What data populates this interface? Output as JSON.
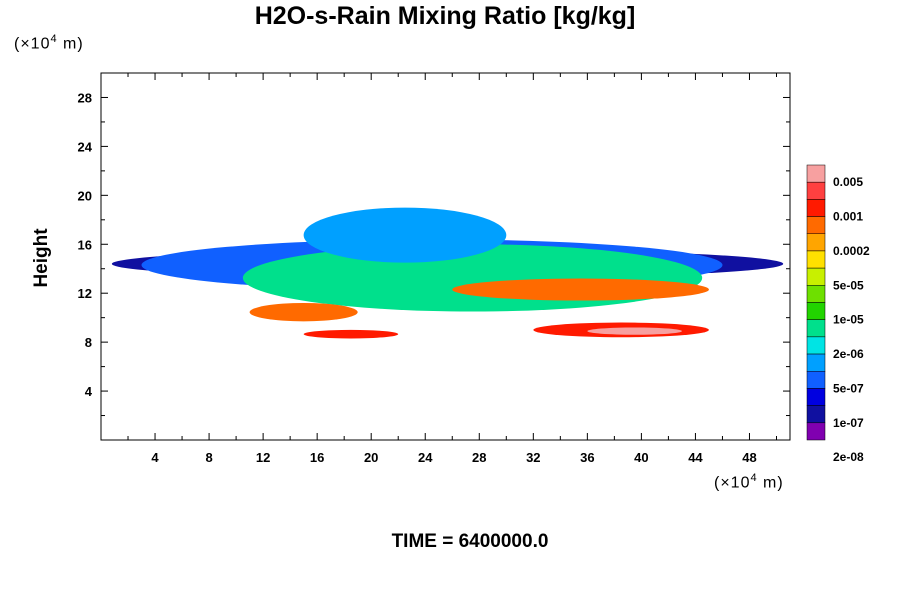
{
  "chart_data": {
    "type": "heatmap",
    "title": "H2O-s-Rain Mixing Ratio [kg/kg]",
    "ylabel": "Height",
    "y_exponent": {
      "base": "(×10",
      "power": "4",
      "unit": " m)"
    },
    "x_exponent": {
      "base": "(×10",
      "power": "4",
      "unit": " m)"
    },
    "xlim": [
      0,
      51
    ],
    "ylim": [
      0,
      30
    ],
    "x_ticks": [
      4,
      8,
      12,
      16,
      20,
      24,
      28,
      32,
      36,
      40,
      44,
      48
    ],
    "y_ticks": [
      4,
      8,
      12,
      16,
      20,
      24,
      28
    ],
    "colorbar": {
      "levels": [
        "2e-08",
        "1e-07",
        "5e-07",
        "2e-06",
        "1e-05",
        "5e-05",
        "0.0002",
        "0.001",
        "0.005"
      ],
      "colors": [
        "#f7a0a0",
        "#ff4040",
        "#ff1a00",
        "#ff6a00",
        "#ffa500",
        "#ffe000",
        "#c8f000",
        "#6ee000",
        "#22d400",
        "#00e08c",
        "#00e4e4",
        "#00a0ff",
        "#1060ff",
        "#0000e0",
        "#1010a0",
        "#8000b0"
      ]
    },
    "cloud_bands": [
      {
        "x0": 0.8,
        "x1": 50.5,
        "y_base": 13.2,
        "y_top": 15.6,
        "level": 1
      },
      {
        "x0": 3,
        "x1": 46,
        "y_base": 12.2,
        "y_top": 16.4,
        "level": 3
      },
      {
        "x0": 10.5,
        "x1": 44.5,
        "y_base": 10.5,
        "y_top": 16.0,
        "level": 6
      },
      {
        "x0": 15,
        "x1": 30,
        "y_base": 14.5,
        "y_top": 19.0,
        "level": 4
      },
      {
        "x0": 26,
        "x1": 45,
        "y_base": 11.4,
        "y_top": 13.2,
        "level": 12
      },
      {
        "x0": 11,
        "x1": 19,
        "y_base": 9.7,
        "y_top": 11.2,
        "level": 12
      },
      {
        "x0": 15,
        "x1": 22,
        "y_base": 8.3,
        "y_top": 9.0,
        "level": 13
      },
      {
        "x0": 32,
        "x1": 45,
        "y_base": 8.4,
        "y_top": 9.6,
        "level": 13
      },
      {
        "x0": 36,
        "x1": 43,
        "y_base": 8.6,
        "y_top": 9.2,
        "level": 15
      }
    ]
  },
  "footer": {
    "time_label": "TIME = 6400000.0"
  }
}
